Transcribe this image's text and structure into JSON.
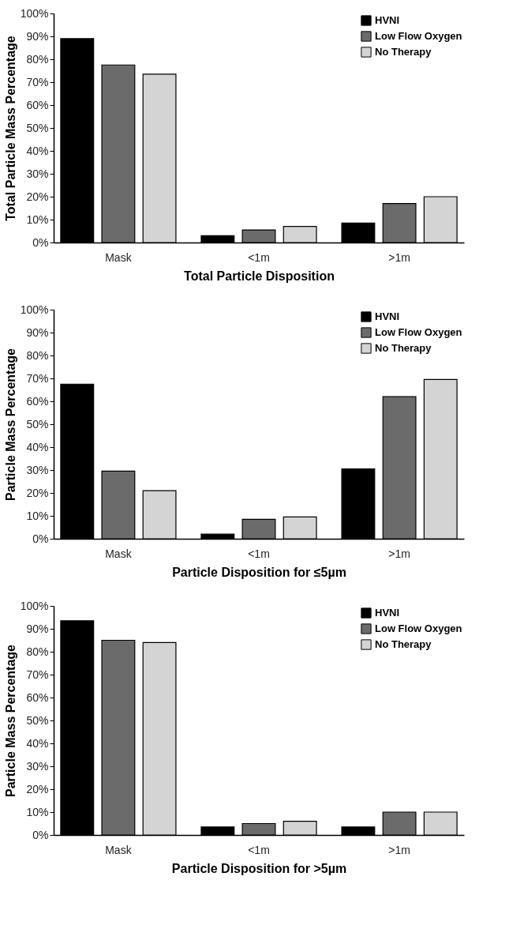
{
  "chart_data": [
    {
      "type": "bar",
      "xlabel": "Total Particle Disposition",
      "ylabel": "Total Particle Mass Percentage",
      "categories": [
        "Mask",
        "<1m",
        ">1m"
      ],
      "series": [
        {
          "name": "HVNI",
          "color": "#000000",
          "values": [
            89,
            3,
            8.5
          ]
        },
        {
          "name": "Low Flow Oxygen",
          "color": "#6b6b6b",
          "values": [
            77.5,
            5.5,
            17
          ]
        },
        {
          "name": "No Therapy",
          "color": "#d4d4d4",
          "values": [
            73.5,
            7,
            20
          ]
        }
      ],
      "ylim": [
        0,
        100
      ],
      "yticks": [
        {
          "value": 0,
          "label": "0%"
        },
        {
          "value": 10,
          "label": "10%"
        },
        {
          "value": 20,
          "label": "20%"
        },
        {
          "value": 30,
          "label": "30%"
        },
        {
          "value": 40,
          "label": "40%"
        },
        {
          "value": 50,
          "label": "50%"
        },
        {
          "value": 60,
          "label": "60%"
        },
        {
          "value": 70,
          "label": "70%"
        },
        {
          "value": 80,
          "label": "80%"
        },
        {
          "value": 90,
          "label": "90%"
        },
        {
          "value": 100,
          "label": "100%"
        }
      ],
      "grid": false,
      "legend": "top right"
    },
    {
      "type": "bar",
      "xlabel": "Particle Disposition for ≤5µm",
      "ylabel": "Particle Mass Percentage",
      "categories": [
        "Mask",
        "<1m",
        ">1m"
      ],
      "series": [
        {
          "name": "HVNI",
          "color": "#000000",
          "values": [
            67.5,
            2,
            30.5
          ]
        },
        {
          "name": "Low Flow Oxygen",
          "color": "#6b6b6b",
          "values": [
            29.5,
            8.5,
            62
          ]
        },
        {
          "name": "No Therapy",
          "color": "#d4d4d4",
          "values": [
            21,
            9.5,
            69.5
          ]
        }
      ],
      "ylim": [
        0,
        100
      ],
      "yticks": [
        {
          "value": 0,
          "label": "0%"
        },
        {
          "value": 10,
          "label": "10%"
        },
        {
          "value": 20,
          "label": "20%"
        },
        {
          "value": 30,
          "label": "30%"
        },
        {
          "value": 40,
          "label": "40%"
        },
        {
          "value": 50,
          "label": "50%"
        },
        {
          "value": 60,
          "label": "60%"
        },
        {
          "value": 70,
          "label": "70%"
        },
        {
          "value": 80,
          "label": "80%"
        },
        {
          "value": 90,
          "label": "90%"
        },
        {
          "value": 100,
          "label": "100%"
        }
      ],
      "grid": false,
      "legend": "top right"
    },
    {
      "type": "bar",
      "xlabel": "Particle Disposition for >5µm",
      "ylabel": "Particle Mass Percentage",
      "categories": [
        "Mask",
        "<1m",
        ">1m"
      ],
      "series": [
        {
          "name": "HVNI",
          "color": "#000000",
          "values": [
            93.5,
            3.5,
            3.5
          ]
        },
        {
          "name": "Low Flow Oxygen",
          "color": "#6b6b6b",
          "values": [
            85,
            5,
            10
          ]
        },
        {
          "name": "No Therapy",
          "color": "#d4d4d4",
          "values": [
            84,
            6,
            10
          ]
        }
      ],
      "ylim": [
        0,
        100
      ],
      "yticks": [
        {
          "value": 0,
          "label": "0%"
        },
        {
          "value": 10,
          "label": "10%"
        },
        {
          "value": 20,
          "label": "20%"
        },
        {
          "value": 30,
          "label": "30%"
        },
        {
          "value": 40,
          "label": "40%"
        },
        {
          "value": 50,
          "label": "50%"
        },
        {
          "value": 60,
          "label": "60%"
        },
        {
          "value": 70,
          "label": "70%"
        },
        {
          "value": 80,
          "label": "80%"
        },
        {
          "value": 90,
          "label": "90%"
        },
        {
          "value": 100,
          "label": "100%"
        }
      ],
      "grid": false,
      "legend": "top right"
    }
  ]
}
